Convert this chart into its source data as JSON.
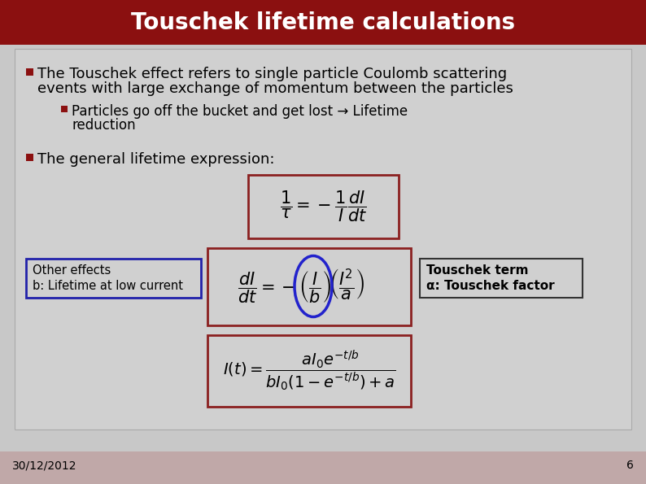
{
  "title": "Touschek lifetime calculations",
  "title_color": "#ffffff",
  "title_bg_color": "#8B1010",
  "slide_bg_color": "#c8c8c8",
  "content_bg_color": "#d0d0d0",
  "footer_bg_color": "#c0a8a8",
  "bullet1_line1": "The Touschek effect refers to single particle Coulomb scattering",
  "bullet1_line2": "events with large exchange of momentum between the particles",
  "bullet2_line1": "Particles go off the bucket and get lost → Lifetime",
  "bullet2_line2": "reduction",
  "bullet3": "The general lifetime expression:",
  "label_left_line1": "Other effects",
  "label_left_line2": "b: Lifetime at low current",
  "label_right_line1": "Touschek term",
  "label_right_line2": "α: Touschek factor",
  "footer_date": "30/12/2012",
  "footer_page": "6",
  "box_edge_color": "#8B2020",
  "label_left_box_color": "#2222aa",
  "label_right_box_color": "#333333",
  "ellipse_color": "#2222cc",
  "text_color": "#000000",
  "title_fontsize": 20,
  "body_fontsize": 13,
  "sub_fontsize": 12,
  "eq_fontsize": 15
}
